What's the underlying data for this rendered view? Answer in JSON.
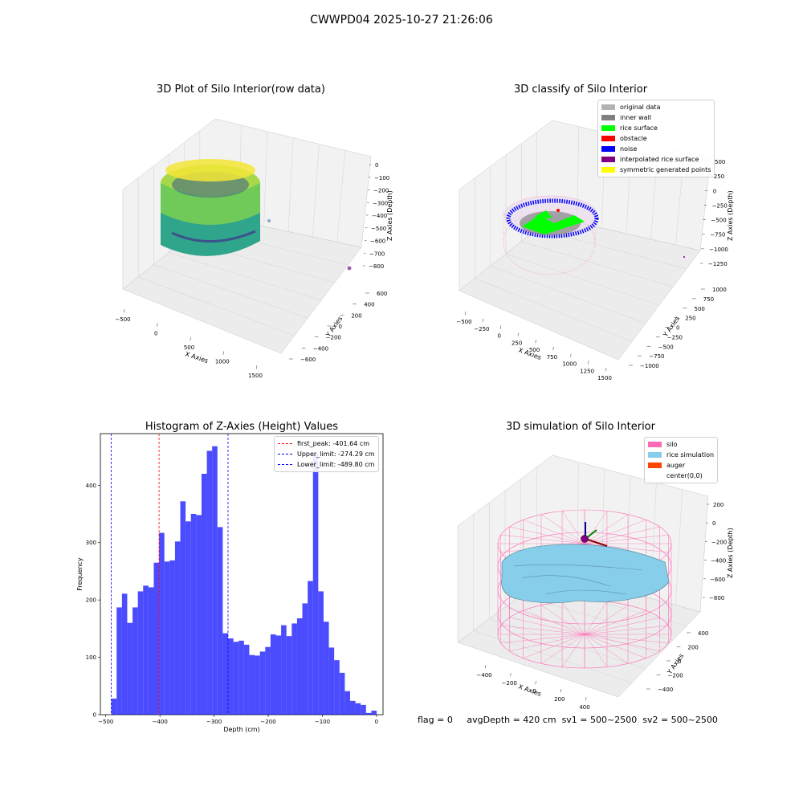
{
  "suptitle": "CWWPD04 2025-10-27 21:26:06",
  "panels": {
    "raw": {
      "title": "3D Plot of Silo Interior(row data)",
      "xlabel": "X Axies",
      "ylabel": "Y Axies",
      "zlabel": "Z Axies (Depth)",
      "xticks": [
        "−500",
        "0",
        "500",
        "1000",
        "1500"
      ],
      "yticks": [
        "−600",
        "−400",
        "−200",
        "0",
        "200",
        "400",
        "600"
      ],
      "zticks": [
        "0",
        "−100",
        "−200",
        "−300",
        "−400",
        "−500",
        "−600",
        "−700",
        "−800"
      ]
    },
    "classify": {
      "title": "3D classify of Silo Interior",
      "xlabel": "X Axies",
      "ylabel": "Y Axies",
      "zlabel": "Z Axies (Depth)",
      "xticks": [
        "−500",
        "−250",
        "0",
        "250",
        "500",
        "750",
        "1000",
        "1250",
        "1500"
      ],
      "yticks": [
        "−1000",
        "−750",
        "−500",
        "−250",
        "0",
        "250",
        "500",
        "750",
        "1000"
      ],
      "zticks": [
        "500",
        "250",
        "0",
        "−250",
        "−500",
        "−750",
        "−1000",
        "−1250"
      ],
      "legend": [
        {
          "label": "original data",
          "color": "#b3b3b3"
        },
        {
          "label": "inner wall",
          "color": "#808080"
        },
        {
          "label": "rice surface",
          "color": "#00ff00"
        },
        {
          "label": "obstacle",
          "color": "#ff0000"
        },
        {
          "label": "noise",
          "color": "#0000ff"
        },
        {
          "label": "interpolated rice surface",
          "color": "#800080"
        },
        {
          "label": "symmetric generated points",
          "color": "#ffff00"
        }
      ]
    },
    "simulation": {
      "title": "3D simulation of Silo Interior",
      "xlabel": "X Axies",
      "ylabel": "Y Axies",
      "zlabel": "Z Axies (Depth)",
      "xticks": [
        "−400",
        "−200",
        "0",
        "200",
        "400"
      ],
      "yticks": [
        "−400",
        "−200",
        "0",
        "200",
        "400"
      ],
      "zticks": [
        "200",
        "0",
        "−200",
        "−400",
        "−600",
        "−800"
      ],
      "legend": [
        {
          "label": "silo",
          "color": "#ff69b4"
        },
        {
          "label": "rice simulation",
          "color": "#87ceeb"
        },
        {
          "label": "auger",
          "color": "#ff4500"
        },
        {
          "label": "center(0,0)",
          "color": ""
        }
      ]
    }
  },
  "chart_data": {
    "type": "bar",
    "title": "Histogram of Z-Axies (Height) Values",
    "xlabel": "Depth (cm)",
    "ylabel": "Frequency",
    "bar_color": "#0000ff",
    "xlim": [
      -510,
      12
    ],
    "ylim": [
      0,
      490
    ],
    "xticks": [
      -500,
      -400,
      -300,
      -200,
      -100,
      0
    ],
    "yticks": [
      0,
      100,
      200,
      300,
      400
    ],
    "bin_start": -489.8,
    "bin_width": 9.8,
    "values": [
      28,
      187,
      211,
      160,
      187,
      215,
      225,
      222,
      265,
      317,
      267,
      269,
      302,
      372,
      337,
      350,
      348,
      420,
      460,
      468,
      327,
      142,
      133,
      127,
      129,
      122,
      104,
      103,
      110,
      118,
      140,
      138,
      156,
      137,
      159,
      168,
      194,
      233,
      455,
      215,
      162,
      117,
      95,
      73,
      41,
      24,
      20,
      17,
      3,
      7
    ],
    "vlines": [
      {
        "x": -401.64,
        "color": "#ff0000",
        "label": "first_peak: -401.64 cm"
      },
      {
        "x": -274.29,
        "color": "#0000ff",
        "label": "Upper_limit: -274.29 cm"
      },
      {
        "x": -489.8,
        "color": "#0000ff",
        "label": "Lower_limit: -489.80 cm"
      }
    ]
  },
  "footer": {
    "flag": "flag = 0",
    "avg_depth": "avgDepth = 420 cm",
    "sv1": "sv1 = 500~2500",
    "sv2": "sv2 = 500~2500"
  }
}
